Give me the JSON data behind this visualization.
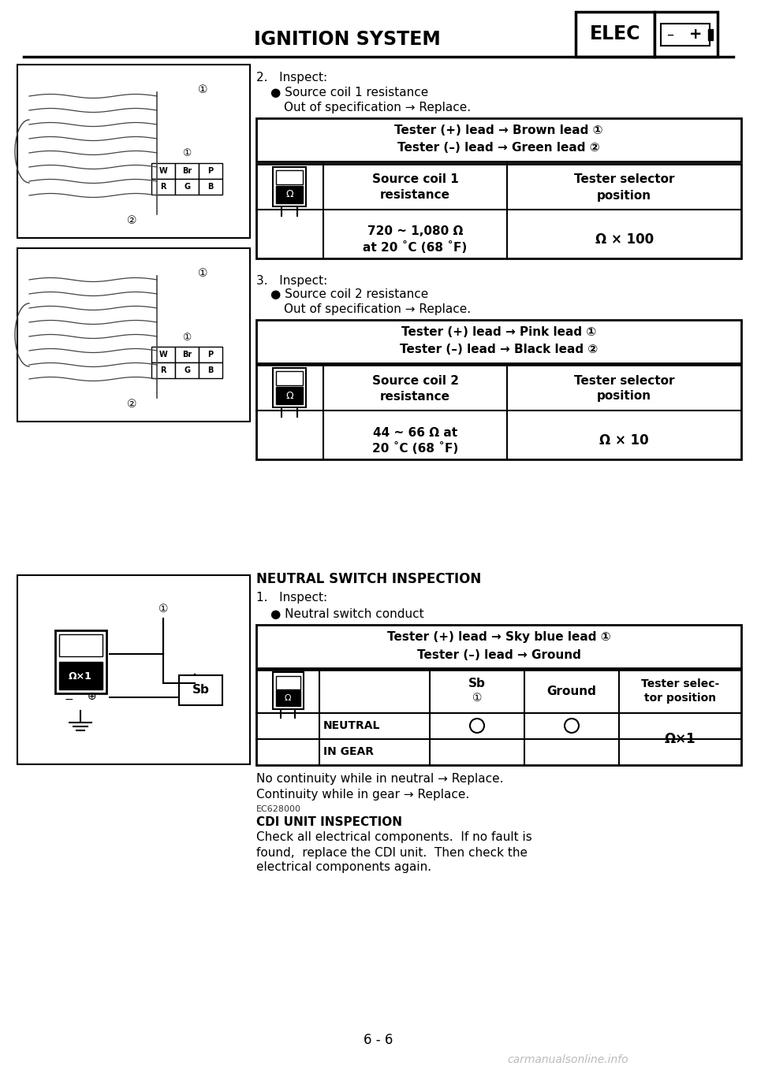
{
  "title": "IGNITION SYSTEM",
  "elec_label": "ELEC",
  "bg_color": "#ffffff",
  "page_number": "6 - 6",
  "section2": {
    "header": "2.   Inspect:",
    "bullet": "● Source coil 1 resistance",
    "sub": "Out of specification → Replace.",
    "ib_line1": "Tester (+) lead → Brown lead ①",
    "ib_line2": "Tester (–) lead → Green lead ②",
    "table_col1_hdr1": "Source coil 1",
    "table_col1_hdr2": "resistance",
    "table_col2_hdr1": "Tester selector",
    "table_col2_hdr2": "position",
    "table_col1_val1": "720 ~ 1,080 Ω",
    "table_col1_val2": "at 20 ˚C (68 ˚F)",
    "table_col2_val": "Ω × 100"
  },
  "section3": {
    "header": "3.   Inspect:",
    "bullet": "● Source coil 2 resistance",
    "sub": "Out of specification → Replace.",
    "ib_line1": "Tester (+) lead → Pink lead ①",
    "ib_line2": "Tester (–) lead → Black lead ②",
    "table_col1_hdr1": "Source coil 2",
    "table_col1_hdr2": "resistance",
    "table_col2_hdr1": "Tester selector",
    "table_col2_hdr2": "position",
    "table_col1_val1": "44 ~ 66 Ω at",
    "table_col1_val2": "20 ˚C (68 ˚F)",
    "table_col2_val": "Ω × 10"
  },
  "neutral_section": {
    "header": "NEUTRAL SWITCH INSPECTION",
    "step": "1.   Inspect:",
    "bullet": "● Neutral switch conduct",
    "ib_line1": "Tester (+) lead → Sky blue lead ①",
    "ib_line2": "Tester (–) lead → Ground",
    "col_sb1": "Sb",
    "col_sb2": "①",
    "col_ground": "Ground",
    "col_tester1": "Tester selec-",
    "col_tester2": "tor position",
    "row1_label": "NEUTRAL",
    "row2_label": "IN GEAR",
    "tester_val": "Ω×1",
    "note1": "No continuity while in neutral → Replace.",
    "note2": "Continuity while in gear → Replace.",
    "note3": "EC628000",
    "cdi_header": "CDI UNIT INSPECTION",
    "cdi_line1": "Check all electrical components.  If no fault is",
    "cdi_line2": "found,  replace the CDI unit.  Then check the",
    "cdi_line3": "electrical components again."
  }
}
